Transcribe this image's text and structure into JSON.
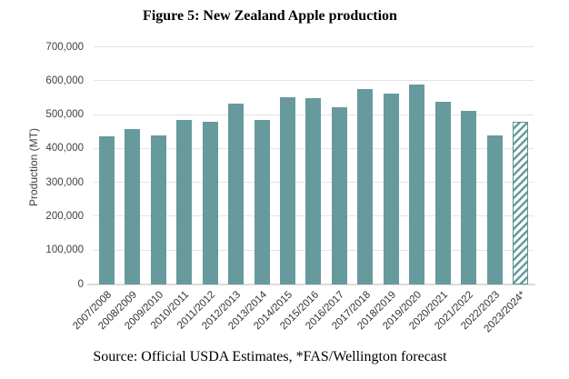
{
  "figure": {
    "title": "Figure 5: New Zealand Apple production",
    "source": "Source: Official USDA Estimates, *FAS/Wellington forecast"
  },
  "colors": {
    "bar_fill": "#679a9c",
    "hatch_stripe": "#679a9c",
    "hatch_background": "#ffffff",
    "gridline": "#e4e4e4",
    "baseline": "#dcdcdc",
    "axis_text": "#3f3f3f",
    "title_text": "#000000",
    "background": "#ffffff"
  },
  "chart_data": {
    "type": "bar",
    "title": "Figure 5: New Zealand Apple production",
    "xlabel": "",
    "ylabel": "Production (MT)",
    "ylim": [
      0,
      700000
    ],
    "ytick_step": 100000,
    "ytick_labels": [
      "0",
      "100,000",
      "200,000",
      "300,000",
      "400,000",
      "500,000",
      "600,000",
      "700,000"
    ],
    "grid": true,
    "legend": "none",
    "categories": [
      "2007/2008",
      "2008/2009",
      "2009/2010",
      "2010/2011",
      "2011/2012",
      "2012/2013",
      "2013/2014",
      "2014/2015",
      "2015/2016",
      "2016/2017",
      "2017/2018",
      "2018/2019",
      "2019/2020",
      "2020/2021",
      "2021/2022",
      "2022/2023",
      "2023/2024*"
    ],
    "values": [
      437000,
      458000,
      440000,
      485000,
      480000,
      533000,
      485000,
      553000,
      550000,
      523000,
      576000,
      563000,
      591000,
      540000,
      513000,
      441000,
      480000
    ],
    "forecast_index": 16,
    "forecast_category": "2023/2024*",
    "forecast_style": "diagonal-hatch",
    "annotation": "*FAS/Wellington forecast"
  }
}
